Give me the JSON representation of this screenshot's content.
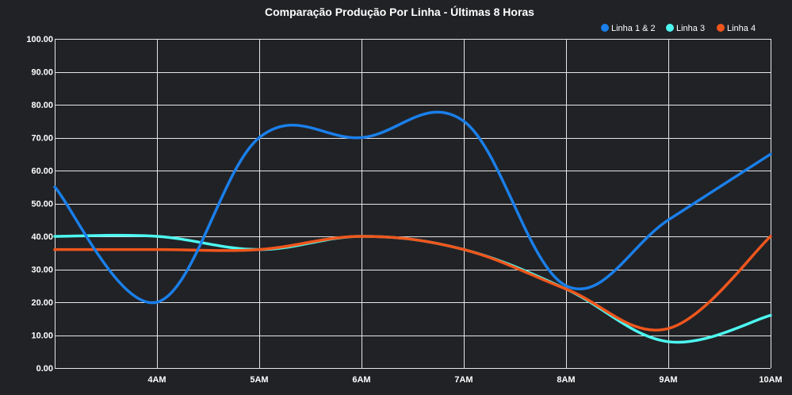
{
  "chart_data": {
    "type": "line",
    "title": "Comparação Produção Por Linha - Últimas 8 Horas",
    "xlabel": "",
    "ylabel": "",
    "categories": [
      "",
      "4AM",
      "5AM",
      "6AM",
      "7AM",
      "8AM",
      "9AM",
      "10AM"
    ],
    "ylim": [
      0,
      100
    ],
    "yticks": [
      "0.00",
      "10.00",
      "20.00",
      "30.00",
      "40.00",
      "50.00",
      "60.00",
      "70.00",
      "80.00",
      "90.00",
      "100.00"
    ],
    "grid": true,
    "legend_position": "top-right",
    "series": [
      {
        "name": "Linha 1 & 2",
        "color": "#1a7fea",
        "values": [
          55,
          20,
          70,
          70,
          75,
          25,
          45,
          65
        ]
      },
      {
        "name": "Linha 3",
        "color": "#4df7f0",
        "values": [
          40,
          40,
          36,
          40,
          36,
          24,
          8,
          16
        ]
      },
      {
        "name": "Linha 4",
        "color": "#f0561c",
        "values": [
          36,
          36,
          36,
          40,
          36,
          24,
          12,
          40
        ]
      }
    ]
  }
}
